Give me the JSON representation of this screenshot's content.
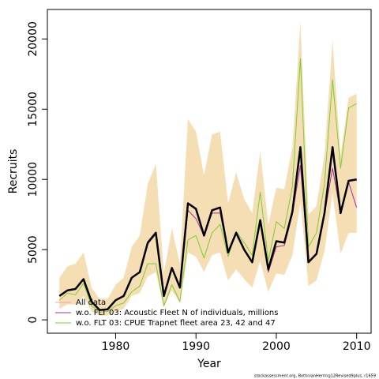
{
  "chart_data": {
    "type": "line",
    "x_label": "Year",
    "y_label": "Recruits",
    "footnote": "stockassessment.org, BothnianHerring12Revised9plus, r1659",
    "x": [
      1973,
      1974,
      1975,
      1976,
      1977,
      1978,
      1979,
      1980,
      1981,
      1982,
      1983,
      1984,
      1985,
      1986,
      1987,
      1988,
      1989,
      1990,
      1991,
      1992,
      1993,
      1994,
      1995,
      1996,
      1997,
      1998,
      1999,
      2000,
      2001,
      2002,
      2003,
      2004,
      2005,
      2006,
      2007,
      2008,
      2009,
      2010
    ],
    "band": {
      "color": "#f5deb3",
      "upper": [
        3000,
        3800,
        4000,
        4800,
        2300,
        1500,
        1500,
        2500,
        3000,
        5200,
        6000,
        9700,
        11100,
        3300,
        6500,
        4000,
        14300,
        13400,
        10300,
        13200,
        13400,
        8300,
        10500,
        8600,
        7600,
        12000,
        6800,
        9400,
        9300,
        12300,
        21200,
        7500,
        8100,
        11800,
        19900,
        11700,
        15800,
        16100
      ],
      "lower": [
        800,
        1100,
        1100,
        1700,
        600,
        300,
        300,
        600,
        800,
        1700,
        1900,
        3100,
        3400,
        900,
        2100,
        1200,
        4800,
        4500,
        3400,
        4600,
        4800,
        2800,
        3600,
        2900,
        2300,
        4200,
        2000,
        3300,
        3200,
        4600,
        8400,
        2400,
        2800,
        4900,
        9000,
        4700,
        6200,
        6200
      ]
    },
    "series": [
      {
        "name": "w.o. FLT 03: CPUE Trapnet fleet area 23, 42 and 47",
        "color": "#7ccd32",
        "width": 1,
        "values": [
          1400,
          1900,
          1800,
          2600,
          1000,
          550,
          600,
          1000,
          1200,
          2000,
          2400,
          4000,
          4000,
          1000,
          2500,
          1300,
          5700,
          6000,
          4400,
          6200,
          6800,
          4500,
          6300,
          5500,
          4600,
          9100,
          4200,
          7000,
          6500,
          9500,
          18600,
          5200,
          6200,
          9700,
          17100,
          10800,
          15100,
          15400
        ]
      },
      {
        "name": "w.o. FLT 03: Acoustic Fleet  N of individuals, millions",
        "color": "#a0309b",
        "width": 1,
        "values": [
          1700,
          2100,
          2200,
          2900,
          1300,
          700,
          750,
          1400,
          1700,
          3000,
          3400,
          5400,
          6100,
          1700,
          3700,
          2300,
          7800,
          7200,
          6000,
          7600,
          7600,
          4800,
          6100,
          5000,
          4100,
          7000,
          3400,
          5200,
          5300,
          7500,
          11000,
          4100,
          4700,
          7500,
          10800,
          7600,
          9800,
          8000
        ]
      },
      {
        "name": "All data",
        "color": "#000000",
        "legend_color": "#f4a0a0",
        "width": 2.5,
        "values": [
          1700,
          2100,
          2200,
          2900,
          1300,
          700,
          750,
          1400,
          1700,
          3000,
          3400,
          5500,
          6200,
          1700,
          3700,
          2300,
          8300,
          7900,
          6000,
          7800,
          8000,
          4800,
          6200,
          5000,
          4100,
          7100,
          3600,
          5600,
          5500,
          7700,
          12300,
          4100,
          4700,
          7600,
          12300,
          7600,
          9900,
          10000
        ]
      }
    ],
    "xlim": [
      1971.5,
      2011.8
    ],
    "ylim": [
      -950,
      22100
    ],
    "xticks": [
      1980,
      1990,
      2000,
      2010
    ],
    "yticks": [
      0,
      5000,
      10000,
      15000,
      20000
    ]
  }
}
